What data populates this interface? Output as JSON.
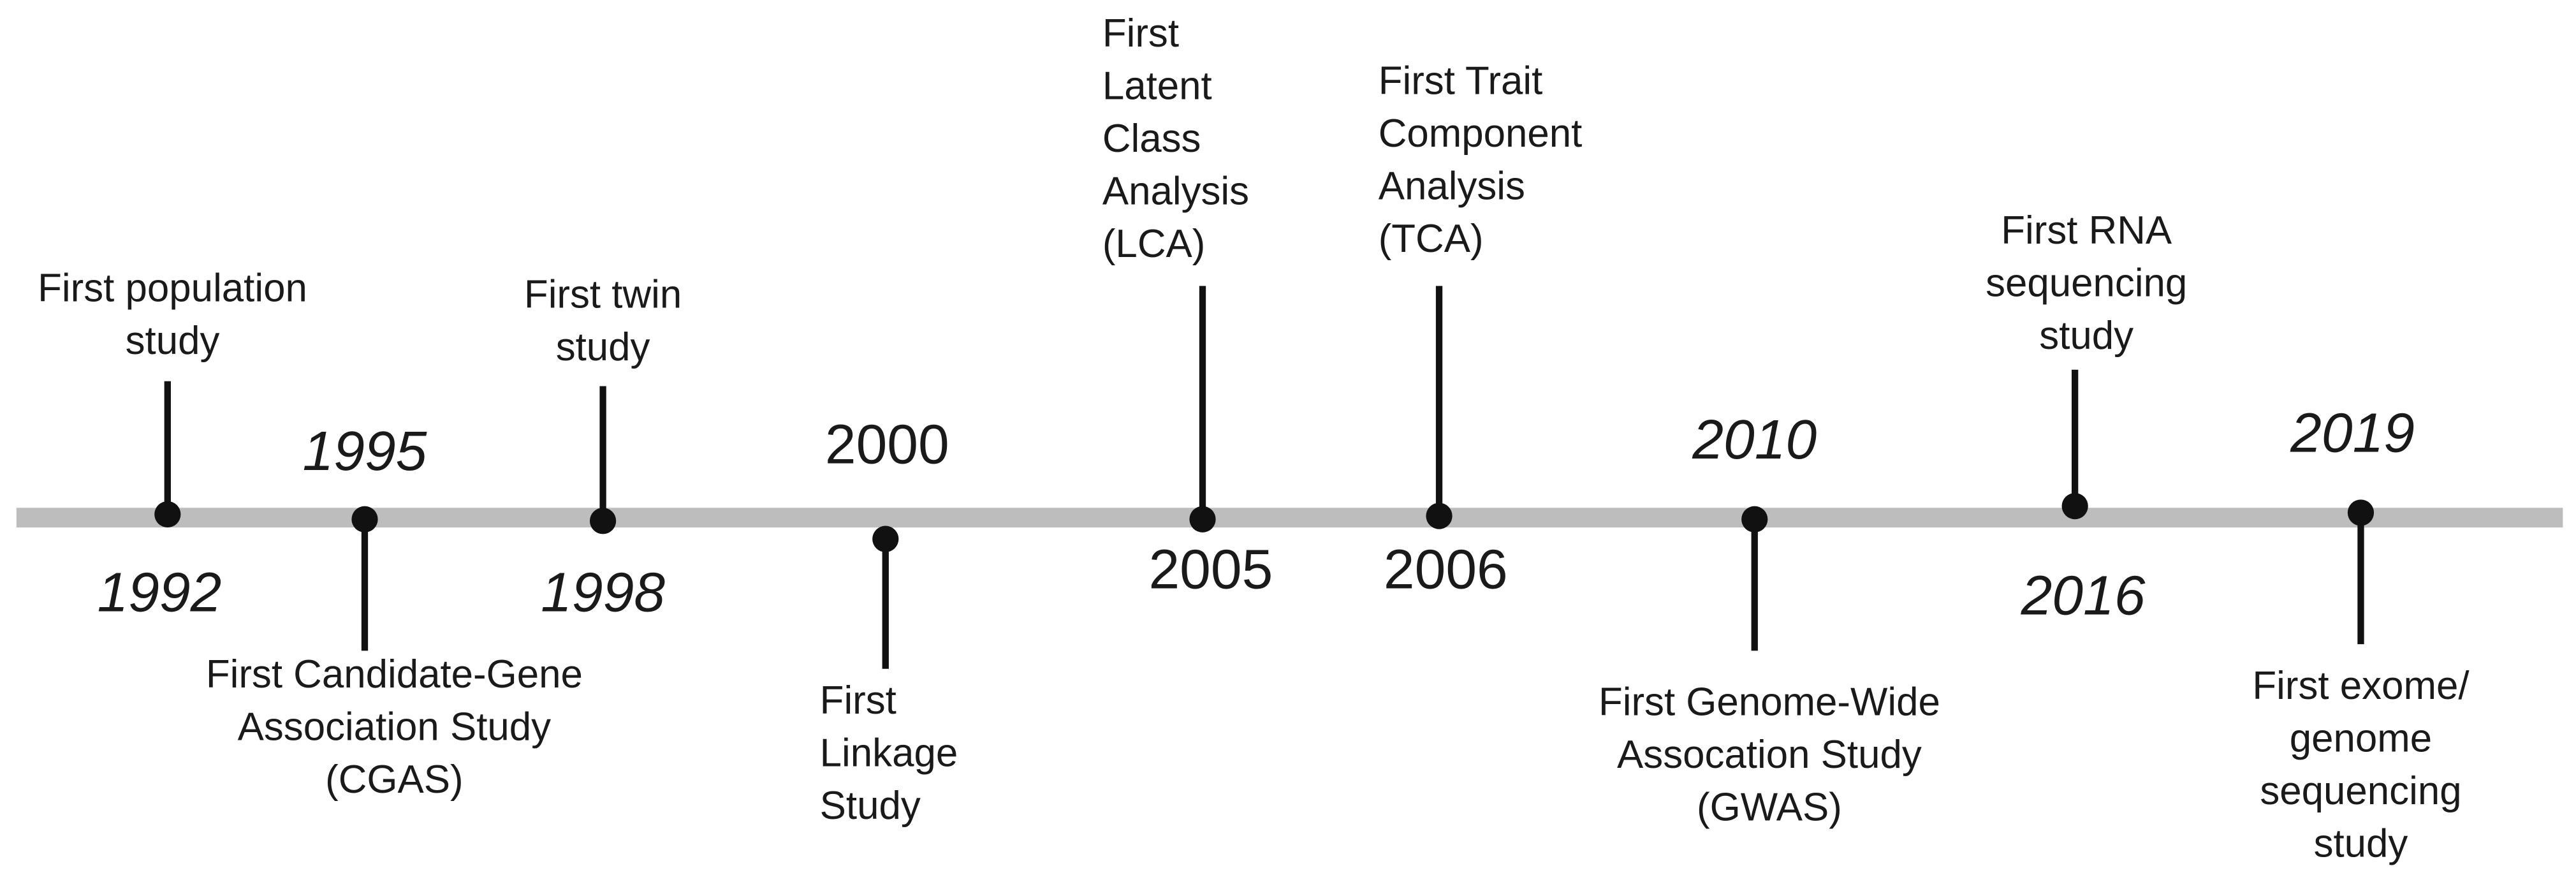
{
  "events": [
    {
      "year": "1992",
      "label": [
        "First population",
        "study"
      ]
    },
    {
      "year": "1995",
      "label": [
        "First Candidate-Gene",
        "Association Study",
        "(CGAS)"
      ]
    },
    {
      "year": "1998",
      "label": [
        "First twin",
        "study"
      ]
    },
    {
      "year": "2000",
      "label": [
        "First",
        "Linkage",
        "Study"
      ]
    },
    {
      "year": "2005",
      "label": [
        "First",
        "Latent",
        "Class",
        "Analysis",
        "(LCA)"
      ]
    },
    {
      "year": "2006",
      "label": [
        "First Trait",
        "Component",
        "Analysis",
        "(TCA)"
      ]
    },
    {
      "year": "2010",
      "label": [
        "First Genome-Wide",
        "Assocation Study",
        "(GWAS)"
      ]
    },
    {
      "year": "2016",
      "label": [
        "First RNA",
        "sequencing",
        "study"
      ]
    },
    {
      "year": "2019",
      "label": [
        "First exome/",
        "genome",
        "sequencing",
        "study"
      ]
    }
  ]
}
